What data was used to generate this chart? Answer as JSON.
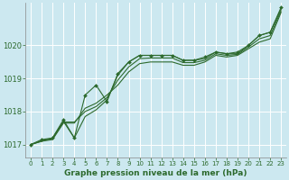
{
  "title": "Graphe pression niveau de la mer (hPa)",
  "background_color": "#cce8f0",
  "plot_bg_color": "#cce8f0",
  "grid_color": "#ffffff",
  "line_color": "#2d6a2d",
  "xlim": [
    -0.5,
    23.5
  ],
  "ylim": [
    1016.6,
    1021.3
  ],
  "yticks": [
    1017,
    1018,
    1019,
    1020
  ],
  "xticks": [
    0,
    1,
    2,
    3,
    4,
    5,
    6,
    7,
    8,
    9,
    10,
    11,
    12,
    13,
    14,
    15,
    16,
    17,
    18,
    19,
    20,
    21,
    22,
    23
  ],
  "series1": [
    1017.0,
    1017.1,
    1017.2,
    1017.7,
    1017.2,
    1017.85,
    1018.05,
    1018.35,
    1019.1,
    1019.5,
    1019.7,
    1019.7,
    1019.7,
    1019.7,
    1019.55,
    1019.55,
    1019.6,
    1019.8,
    1019.75,
    1019.75,
    1020.0,
    1020.3,
    1020.4,
    1021.1
  ],
  "series2": [
    1017.0,
    1017.1,
    1017.15,
    1017.65,
    1017.65,
    1018.1,
    1018.25,
    1018.5,
    1018.8,
    1019.2,
    1019.45,
    1019.5,
    1019.5,
    1019.5,
    1019.4,
    1019.4,
    1019.5,
    1019.7,
    1019.65,
    1019.7,
    1019.9,
    1020.1,
    1020.2,
    1021.0
  ],
  "series3": [
    1017.0,
    1017.12,
    1017.18,
    1017.68,
    1017.68,
    1018.0,
    1018.15,
    1018.42,
    1018.95,
    1019.35,
    1019.6,
    1019.62,
    1019.62,
    1019.62,
    1019.48,
    1019.48,
    1019.55,
    1019.75,
    1019.7,
    1019.73,
    1019.95,
    1020.2,
    1020.3,
    1021.05
  ],
  "series_marked": [
    1017.0,
    1017.15,
    1017.2,
    1017.75,
    1017.2,
    1018.5,
    1018.8,
    1018.3,
    1019.15,
    1019.5,
    1019.7,
    1019.7,
    1019.7,
    1019.7,
    1019.55,
    1019.55,
    1019.65,
    1019.8,
    1019.75,
    1019.8,
    1020.0,
    1020.3,
    1020.4,
    1021.15
  ],
  "ylabel_fontsize": 5.5,
  "xlabel_fontsize": 6.5,
  "ytick_fontsize": 6.0,
  "xtick_fontsize": 5.0
}
